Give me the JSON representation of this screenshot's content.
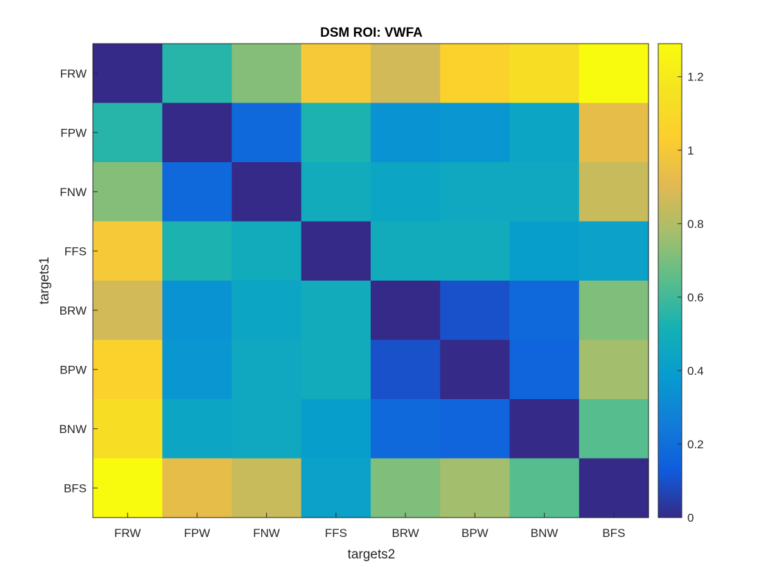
{
  "chart_data": {
    "type": "heatmap",
    "title": "DSM ROI: VWFA",
    "xlabel": "targets2",
    "ylabel": "targets1",
    "x_categories": [
      "FRW",
      "FPW",
      "FNW",
      "FFS",
      "BRW",
      "BPW",
      "BNW",
      "BFS"
    ],
    "y_categories": [
      "FRW",
      "FPW",
      "FNW",
      "FFS",
      "BRW",
      "BPW",
      "BNW",
      "BFS"
    ],
    "values": [
      [
        0.0,
        0.55,
        0.72,
        1.0,
        0.87,
        1.05,
        1.13,
        1.29
      ],
      [
        0.55,
        0.0,
        0.18,
        0.53,
        0.35,
        0.36,
        0.44,
        0.93
      ],
      [
        0.72,
        0.18,
        0.0,
        0.48,
        0.44,
        0.46,
        0.46,
        0.85
      ],
      [
        1.0,
        0.53,
        0.48,
        0.0,
        0.48,
        0.48,
        0.4,
        0.42
      ],
      [
        0.87,
        0.35,
        0.44,
        0.48,
        0.0,
        0.1,
        0.18,
        0.71
      ],
      [
        1.05,
        0.36,
        0.46,
        0.48,
        0.1,
        0.0,
        0.16,
        0.77
      ],
      [
        1.13,
        0.44,
        0.46,
        0.4,
        0.18,
        0.16,
        0.0,
        0.64
      ],
      [
        1.29,
        0.93,
        0.85,
        0.42,
        0.71,
        0.77,
        0.64,
        0.0
      ]
    ],
    "colormap": "parula",
    "clim": [
      0,
      1.29
    ],
    "colorbar_ticks": [
      0,
      0.2,
      0.4,
      0.6,
      0.8,
      1,
      1.2
    ],
    "colorbar_tick_labels": [
      "0",
      "0.2",
      "0.4",
      "0.6",
      "0.8",
      "1",
      "1.2"
    ],
    "grid": false,
    "colorbar_position": "right"
  }
}
